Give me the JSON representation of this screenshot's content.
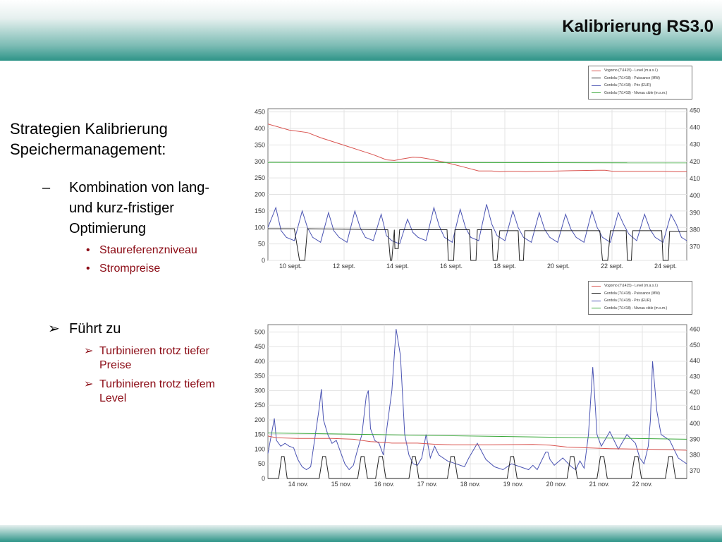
{
  "header": {
    "title": "Kalibrierung RS3.0"
  },
  "colors": {
    "level": "#d9534f",
    "puissance": "#222222",
    "prix": "#4b54b3",
    "niveau_cible": "#3aa83a",
    "bullet_red": "#8b0a14",
    "teal": "#2e9488"
  },
  "content": {
    "heading_line1": "Strategien Kalibrierung",
    "heading_line2": "Speichermanagement:",
    "dash_symbol": "–",
    "item1_line1": "Kombination von lang-",
    "item1_line2": "und kurz-fristiger",
    "item1_line3": "Optimierung",
    "bullet_symbol": "•",
    "sub1": "Staureferenzniveau",
    "sub2": "Strompreise",
    "arrow_symbol": "➢",
    "arrow_main": "Führt zu",
    "arrow_sub1_line1": "Turbinieren trotz tiefer",
    "arrow_sub1_line2": "Preise",
    "arrow_sub2_line1": "Turbinieren trotz tiefem",
    "arrow_sub2_line2": "Level"
  },
  "legend": {
    "items": [
      "Vogorno (7\\1415) - Level (m.a.s.l.)",
      "Gordola (7\\1418) - Puissance (MW)",
      "Gordola (7\\1418) - Prix (EUR)",
      "Gordola (7\\1418) - Niveau cible (m.s.m.)"
    ]
  },
  "chart_data": [
    {
      "type": "line",
      "x_tick_labels": [
        "10 sept.",
        "12 sept.",
        "14 sept.",
        "16 sept.",
        "18 sept.",
        "20 sept.",
        "22 sept.",
        "24 sept."
      ],
      "x_range_days": [
        9.5,
        25.4
      ],
      "left_axis": {
        "ticks": [
          0,
          50,
          100,
          150,
          200,
          250,
          300,
          350,
          400,
          450
        ],
        "ylim": [
          0,
          460
        ]
      },
      "right_axis": {
        "ticks": [
          370,
          380,
          390,
          400,
          410,
          420,
          430,
          440,
          450
        ],
        "ylim": [
          362,
          451
        ]
      },
      "grid": true,
      "series": [
        {
          "name": "Vogorno (7\\1415) - Level (m.a.s.l.)",
          "axis": "right",
          "x": [
            9.5,
            10.3,
            11,
            11.5,
            12,
            12.5,
            13,
            13.5,
            14,
            14.3,
            14.6,
            15,
            15.3,
            15.7,
            16,
            16.5,
            17,
            17.5,
            18,
            18.3,
            18.6,
            19,
            19.3,
            19.6,
            20,
            21,
            22,
            22.3,
            22.6,
            23,
            24,
            24.5,
            25,
            25.4
          ],
          "values": [
            442,
            438.5,
            437,
            434,
            431.5,
            429,
            426.5,
            424,
            421,
            420.6,
            421.5,
            422.5,
            422.3,
            421.3,
            420.3,
            418.5,
            416.5,
            414.5,
            414.5,
            414,
            414.3,
            414.3,
            414,
            414.3,
            414.3,
            414.6,
            414.9,
            414.9,
            414.3,
            414.3,
            414.3,
            414.3,
            414,
            414
          ]
        },
        {
          "name": "Gordola (7\\1418) - Prix (EUR)",
          "axis": "left",
          "x": [
            9.5,
            9.8,
            10.0,
            10.2,
            10.5,
            10.8,
            11.0,
            11.2,
            11.5,
            11.8,
            12.0,
            12.2,
            12.5,
            12.8,
            13.0,
            13.2,
            13.5,
            13.8,
            14.0,
            14.2,
            14.5,
            14.8,
            15.0,
            15.2,
            15.5,
            15.8,
            16.0,
            16.2,
            16.5,
            16.8,
            17.0,
            17.2,
            17.5,
            17.8,
            18.0,
            18.2,
            18.5,
            18.8,
            19.0,
            19.2,
            19.5,
            19.8,
            20.0,
            20.2,
            20.5,
            20.8,
            21.0,
            21.2,
            21.5,
            21.8,
            22.0,
            22.2,
            22.5,
            22.8,
            23.0,
            23.2,
            23.5,
            23.8,
            24.0,
            24.2,
            24.5,
            24.8,
            25.0,
            25.2,
            25.4
          ],
          "values": [
            100,
            160,
            90,
            70,
            60,
            150,
            100,
            70,
            55,
            145,
            90,
            70,
            55,
            150,
            100,
            70,
            60,
            140,
            75,
            60,
            50,
            125,
            85,
            70,
            60,
            160,
            105,
            70,
            55,
            155,
            100,
            70,
            60,
            170,
            110,
            75,
            60,
            150,
            100,
            70,
            55,
            145,
            95,
            70,
            55,
            140,
            95,
            70,
            55,
            150,
            100,
            70,
            55,
            145,
            110,
            80,
            60,
            140,
            95,
            70,
            55,
            140,
            110,
            70,
            60
          ]
        },
        {
          "name": "Gordola (7\\1418) - Puissance (MW)",
          "axis": "left",
          "x": [
            9.5,
            10.4,
            10.5,
            10.7,
            10.9,
            11.0,
            14.0,
            14.05,
            14.15,
            14.2,
            14.3,
            14.32,
            14.45,
            14.5,
            16.0,
            16.3,
            16.35,
            16.55,
            16.6,
            17.15,
            17.2,
            17.4,
            17.45,
            18.0,
            18.05,
            18.2,
            18.3,
            19.0,
            19.05,
            19.2,
            19.25,
            22.1,
            22.2,
            22.4,
            22.5,
            23.1,
            23.15,
            23.3,
            23.35,
            24.45,
            24.5,
            24.7,
            24.75,
            25.4
          ],
          "values": [
            96,
            96,
            96,
            0,
            0,
            96,
            93,
            93,
            0,
            0,
            93,
            36,
            36,
            93,
            93,
            93,
            0,
            0,
            93,
            93,
            0,
            0,
            93,
            93,
            0,
            0,
            90,
            90,
            0,
            0,
            90,
            90,
            0,
            0,
            90,
            90,
            0,
            0,
            90,
            90,
            0,
            0,
            88,
            88
          ]
        },
        {
          "name": "Gordola (7\\1418) - Niveau cible (m.s.m.)",
          "axis": "right",
          "x": [
            9.5,
            25.4
          ],
          "values": [
            419.5,
            419.2
          ]
        }
      ]
    },
    {
      "type": "line",
      "x_tick_labels": [
        "14 nov.",
        "15 nov.",
        "16 nov.",
        "17 nov.",
        "18 nov.",
        "19 nov.",
        "20 nov.",
        "21 nov.",
        "22 nov."
      ],
      "x_range_days": [
        13.3,
        23.1
      ],
      "left_axis": {
        "ticks": [
          0,
          50,
          100,
          150,
          200,
          250,
          300,
          350,
          400,
          450,
          500
        ],
        "ylim": [
          0,
          525
        ]
      },
      "right_axis": {
        "ticks": [
          370,
          380,
          390,
          400,
          410,
          420,
          430,
          440,
          450,
          460
        ],
        "ylim": [
          365,
          463
        ]
      },
      "grid": true,
      "series": [
        {
          "name": "Vogorno (7\\1415) - Level (m.a.s.l.)",
          "axis": "right",
          "x": [
            13.3,
            13.5,
            14.0,
            14.4,
            14.8,
            15.3,
            15.7,
            16.0,
            16.2,
            16.5,
            16.8,
            17.2,
            17.6,
            18.0,
            18.5,
            19.0,
            19.5,
            19.9,
            20.3,
            20.8,
            21.3,
            21.8,
            22.3,
            22.8,
            23.1
          ],
          "values": [
            392,
            391,
            390.5,
            390.5,
            390.5,
            390,
            388.5,
            388,
            387.5,
            387.5,
            387.5,
            386.8,
            386.5,
            386.5,
            386.5,
            386.6,
            386.7,
            386.2,
            385,
            384.5,
            384,
            383.8,
            383.6,
            383.2,
            383
          ]
        },
        {
          "name": "Gordola (7\\1418) - Prix (EUR)",
          "axis": "left",
          "x": [
            13.3,
            13.45,
            13.5,
            13.6,
            13.7,
            13.8,
            13.9,
            14.0,
            14.1,
            14.2,
            14.3,
            14.4,
            14.5,
            14.55,
            14.6,
            14.7,
            14.8,
            14.9,
            15.0,
            15.1,
            15.2,
            15.3,
            15.4,
            15.5,
            15.6,
            15.65,
            15.7,
            15.8,
            15.9,
            16.0,
            16.1,
            16.2,
            16.3,
            16.4,
            16.5,
            16.6,
            16.7,
            16.8,
            16.9,
            17.0,
            17.1,
            17.2,
            17.3,
            17.5,
            17.7,
            17.9,
            18.0,
            18.2,
            18.4,
            18.6,
            18.8,
            19.0,
            19.2,
            19.4,
            19.5,
            19.6,
            19.7,
            19.8,
            19.85,
            19.9,
            20.0,
            20.2,
            20.4,
            20.5,
            20.6,
            20.7,
            20.8,
            20.9,
            20.95,
            21.0,
            21.1,
            21.3,
            21.5,
            21.7,
            21.9,
            22.0,
            22.1,
            22.2,
            22.25,
            22.3,
            22.4,
            22.5,
            22.7,
            22.9,
            23.0,
            23.1
          ],
          "values": [
            85,
            205,
            130,
            110,
            120,
            110,
            105,
            65,
            40,
            30,
            40,
            140,
            240,
            305,
            200,
            150,
            120,
            130,
            90,
            50,
            30,
            45,
            100,
            150,
            280,
            300,
            170,
            130,
            120,
            80,
            190,
            300,
            510,
            420,
            150,
            80,
            50,
            45,
            70,
            150,
            70,
            110,
            80,
            60,
            50,
            40,
            70,
            120,
            65,
            40,
            30,
            50,
            40,
            30,
            45,
            30,
            60,
            90,
            90,
            65,
            45,
            70,
            40,
            30,
            60,
            35,
            150,
            380,
            270,
            150,
            110,
            160,
            100,
            150,
            120,
            70,
            50,
            110,
            200,
            400,
            230,
            150,
            130,
            70,
            60,
            50
          ]
        },
        {
          "name": "Gordola (7\\1418) - Puissance (MW)",
          "axis": "left",
          "x": [
            13.3,
            13.55,
            13.62,
            13.68,
            13.75,
            14.5,
            14.58,
            14.65,
            14.73,
            15.4,
            15.48,
            15.55,
            15.63,
            15.82,
            15.9,
            15.98,
            16.06,
            16.6,
            16.68,
            16.75,
            16.83,
            17.5,
            17.58,
            17.66,
            17.74,
            18.9,
            18.98,
            19.05,
            19.13,
            20.3,
            20.38,
            20.46,
            20.54,
            21.0,
            21.08,
            21.16,
            21.24,
            21.8,
            21.88,
            21.96,
            22.04,
            22.6,
            22.68,
            22.76,
            22.84,
            23.1
          ],
          "values": [
            0,
            0,
            75,
            75,
            0,
            0,
            75,
            75,
            0,
            0,
            75,
            75,
            0,
            0,
            75,
            75,
            0,
            0,
            75,
            75,
            0,
            0,
            75,
            75,
            0,
            0,
            75,
            75,
            0,
            0,
            75,
            75,
            0,
            0,
            75,
            75,
            0,
            0,
            75,
            75,
            0,
            0,
            75,
            75,
            0,
            0
          ]
        },
        {
          "name": "Gordola (7\\1418) - Niveau cible (m.s.m.)",
          "axis": "right",
          "x": [
            13.3,
            23.1
          ],
          "values": [
            394,
            390
          ]
        }
      ]
    }
  ]
}
